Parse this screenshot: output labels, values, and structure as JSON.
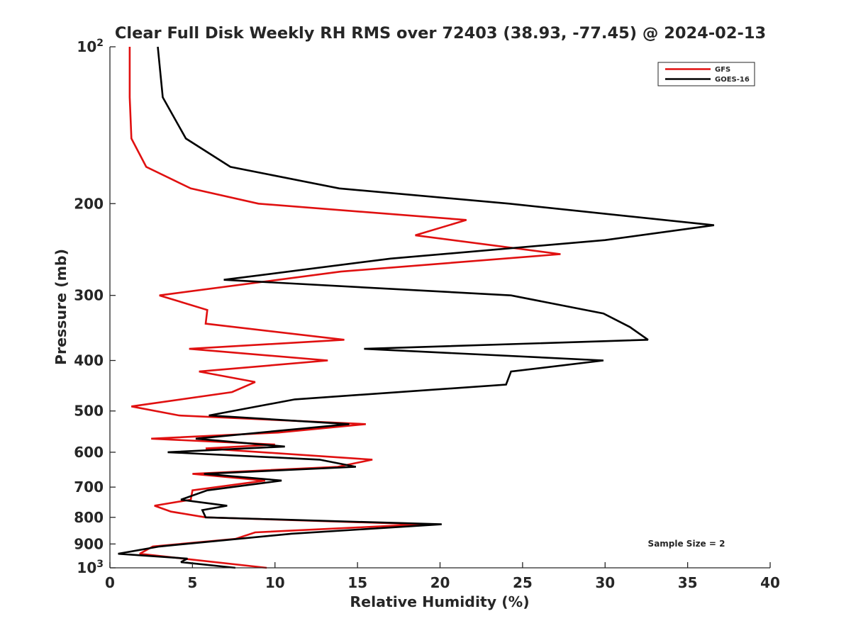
{
  "chart_data": {
    "type": "line",
    "title": "Clear Full Disk Weekly RH RMS over 72403 (38.93, -77.45) @ 2024-02-13",
    "xlabel": "Relative Humidity (%)",
    "ylabel": "Pressure (mb)",
    "xlim": [
      0,
      40
    ],
    "ylim": [
      100,
      1000
    ],
    "y_scale": "log",
    "y_reversed": true,
    "grid": false,
    "legend_position": "top-right",
    "xticks": [
      "0",
      "5",
      "10",
      "15",
      "20",
      "25",
      "30",
      "35",
      "40"
    ],
    "xtick_values": [
      0,
      5,
      10,
      15,
      20,
      25,
      30,
      35,
      40
    ],
    "yticks": [
      {
        "value": 100,
        "base": "10",
        "exp": "2"
      },
      {
        "value": 200,
        "base": "200",
        "exp": ""
      },
      {
        "value": 300,
        "base": "300",
        "exp": ""
      },
      {
        "value": 400,
        "base": "400",
        "exp": ""
      },
      {
        "value": 500,
        "base": "500",
        "exp": ""
      },
      {
        "value": 600,
        "base": "600",
        "exp": ""
      },
      {
        "value": 700,
        "base": "700",
        "exp": ""
      },
      {
        "value": 800,
        "base": "800",
        "exp": ""
      },
      {
        "value": 900,
        "base": "900",
        "exp": ""
      },
      {
        "value": 1000,
        "base": "10",
        "exp": "3"
      }
    ],
    "annotation": "Sample Size = 2",
    "series": [
      {
        "name": "GFS",
        "color": "#e01010",
        "points": [
          [
            1.2,
            100
          ],
          [
            1.2,
            125
          ],
          [
            1.3,
            150
          ],
          [
            2.2,
            170
          ],
          [
            4.9,
            187
          ],
          [
            9.0,
            200
          ],
          [
            21.6,
            215
          ],
          [
            18.5,
            230
          ],
          [
            27.3,
            250
          ],
          [
            14.0,
            270
          ],
          [
            3.0,
            300
          ],
          [
            5.9,
            320
          ],
          [
            5.8,
            340
          ],
          [
            14.2,
            365
          ],
          [
            4.8,
            380
          ],
          [
            13.2,
            400
          ],
          [
            5.4,
            420
          ],
          [
            8.8,
            440
          ],
          [
            7.4,
            460
          ],
          [
            1.3,
            490
          ],
          [
            4.2,
            510
          ],
          [
            15.5,
            530
          ],
          [
            10.2,
            550
          ],
          [
            2.5,
            565
          ],
          [
            10.0,
            580
          ],
          [
            5.8,
            590
          ],
          [
            15.9,
            620
          ],
          [
            13.8,
            640
          ],
          [
            5.0,
            660
          ],
          [
            9.4,
            680
          ],
          [
            5.0,
            710
          ],
          [
            4.9,
            740
          ],
          [
            2.7,
            760
          ],
          [
            3.7,
            780
          ],
          [
            5.8,
            800
          ],
          [
            19.0,
            825
          ],
          [
            8.8,
            855
          ],
          [
            7.6,
            880
          ],
          [
            2.6,
            910
          ],
          [
            1.8,
            940
          ],
          [
            9.5,
            1000
          ]
        ]
      },
      {
        "name": "GOES-16",
        "color": "#000000",
        "points": [
          [
            2.9,
            100
          ],
          [
            3.2,
            125
          ],
          [
            4.6,
            150
          ],
          [
            7.3,
            170
          ],
          [
            13.9,
            187
          ],
          [
            24.2,
            200
          ],
          [
            36.6,
            220
          ],
          [
            30.0,
            235
          ],
          [
            17.0,
            255
          ],
          [
            6.9,
            280
          ],
          [
            24.3,
            300
          ],
          [
            29.9,
            325
          ],
          [
            31.5,
            345
          ],
          [
            32.6,
            365
          ],
          [
            15.4,
            380
          ],
          [
            29.9,
            400
          ],
          [
            24.3,
            420
          ],
          [
            24.0,
            445
          ],
          [
            11.2,
            475
          ],
          [
            6.0,
            510
          ],
          [
            14.5,
            530
          ],
          [
            5.2,
            565
          ],
          [
            10.6,
            585
          ],
          [
            3.5,
            600
          ],
          [
            12.7,
            620
          ],
          [
            14.9,
            640
          ],
          [
            5.7,
            660
          ],
          [
            10.4,
            680
          ],
          [
            5.9,
            710
          ],
          [
            4.3,
            740
          ],
          [
            7.1,
            760
          ],
          [
            5.6,
            775
          ],
          [
            5.8,
            800
          ],
          [
            20.1,
            825
          ],
          [
            11.0,
            860
          ],
          [
            3.0,
            910
          ],
          [
            0.5,
            940
          ],
          [
            4.7,
            960
          ],
          [
            4.3,
            975
          ],
          [
            7.6,
            1000
          ]
        ]
      }
    ]
  }
}
